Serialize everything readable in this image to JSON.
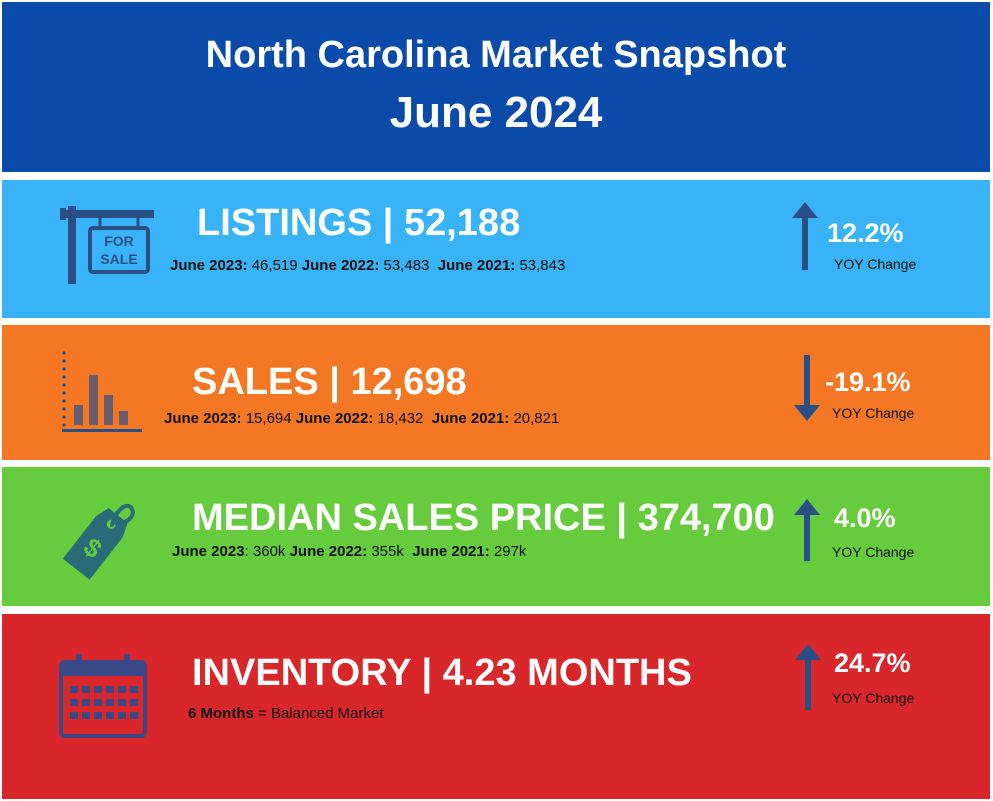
{
  "header": {
    "title": "North Carolina Market Snapshot",
    "subtitle": "June 2024"
  },
  "yoy_label": "YOY Change",
  "listings": {
    "headline": "LISTINGS | 52,188",
    "sign_text_1": "FOR",
    "sign_text_2": "SALE",
    "history": [
      {
        "label": "June 2023:",
        "value": "46,519"
      },
      {
        "label": "June 2022:",
        "value": "53,483"
      },
      {
        "label": "June 2021:",
        "value": "53,843"
      }
    ],
    "change": "12.2%",
    "direction": "up"
  },
  "sales": {
    "headline": "SALES | 12,698",
    "history": [
      {
        "label": "June 2023:",
        "value": "15,694"
      },
      {
        "label": "June 2022:",
        "value": "18,432"
      },
      {
        "label": "June 2021:",
        "value": "20,821"
      }
    ],
    "change": "-19.1%",
    "direction": "down"
  },
  "price": {
    "headline": "MEDIAN SALES PRICE | 374,700",
    "history": [
      {
        "label": "June 2023",
        "value": ": 360k"
      },
      {
        "label": "June 2022:",
        "value": "355k"
      },
      {
        "label": "June 2021:",
        "value": "297k"
      }
    ],
    "change": "4.0%",
    "direction": "up"
  },
  "inventory": {
    "headline": "INVENTORY | 4.23 MONTHS",
    "note_bold": "6 Months",
    "note_text": "= Balanced Market",
    "change": "24.7%",
    "direction": "up"
  },
  "colors": {
    "header": "#0a4aa8",
    "listings": "#38b3f7",
    "sales": "#f47723",
    "price": "#66cc3d",
    "inventory": "#d9262b",
    "icon": "#2a4f86"
  }
}
